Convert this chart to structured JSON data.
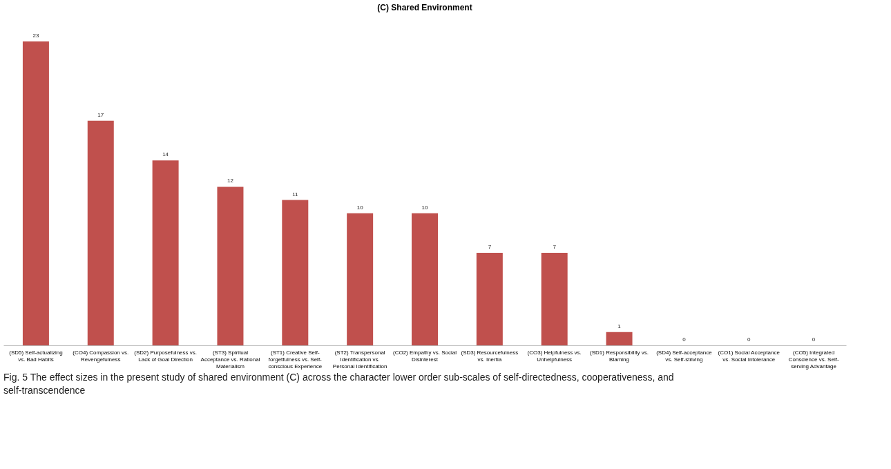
{
  "chart_data": {
    "type": "bar",
    "title": "(C) Shared Environment",
    "categories": [
      "(SD5) Self-actualizing vs. Bad Habits",
      "(CO4) Compassion vs. Revengefulness",
      "(SD2) Purposefulness vs. Lack of Goal Direction",
      "(ST3) Spiritual Acceptance vs. Rational Materialism",
      "(ST1) Creative Self-forgetfulness vs. Self-conscious Experience",
      "(ST2) Transpersonal Identification vs. Personal Identification",
      "(CO2) Empathy vs. Social Disinterest",
      "(SD3) Resourcefulness vs. Inertia",
      "(CO3) Helpfulness vs. Unhelpfulness",
      "(SD1) Responsibility vs. Blaming",
      "(SD4) Self-acceptance vs. Self-striving",
      "(CO1) Social Acceptance vs. Social Intolerance",
      "(CO5) Integrated Conscience vs. Self-serving Advantage"
    ],
    "values": [
      23,
      17,
      14,
      12,
      11,
      10,
      10,
      7,
      7,
      1,
      0,
      0,
      0
    ],
    "color": "#c0504d",
    "data_labels": true,
    "tick_labels": "x",
    "annotations": [
      "Fig. 5 The effect sizes in the present study of shared environment (C) across the character lower order sub-scales of self-directedness, cooperativeness, and self-transcendence"
    ]
  }
}
